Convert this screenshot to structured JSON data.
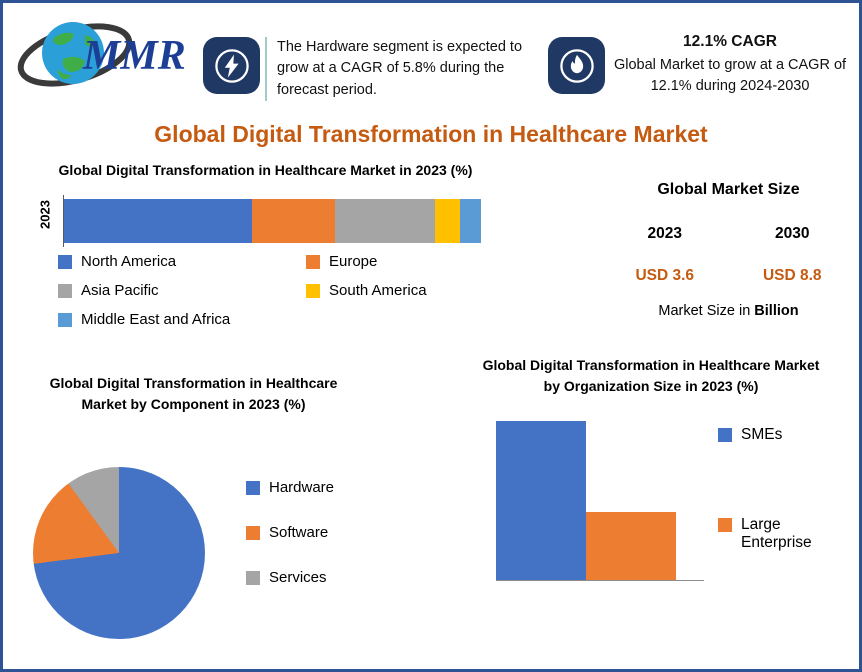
{
  "page": {
    "title": "Global Digital Transformation in Healthcare Market"
  },
  "logo": {
    "text": "MMR"
  },
  "callouts": {
    "hardware": {
      "icon": "lightning-icon",
      "text": "The Hardware segment is expected to grow at a CAGR of 5.8% during the forecast period."
    },
    "cagr": {
      "icon": "flame-icon",
      "headline": "12.1% CAGR",
      "text": "Global Market to grow at a CAGR of 12.1% during 2024-2030"
    }
  },
  "market_size": {
    "title": "Global Market Size",
    "year_left": "2023",
    "year_right": "2030",
    "value_left": "USD 3.6",
    "value_right": "USD 8.8",
    "note_text": "Market Size in ",
    "note_bold": "Billion"
  },
  "colors": {
    "accent_orange": "#c55a11",
    "navy": "#1f3864",
    "border_blue": "#2e5395",
    "series_blue": "#4472c4",
    "series_orange": "#ed7d31",
    "series_gray": "#a5a5a5",
    "series_yellow": "#ffc000",
    "series_lightblue": "#5b9bd5"
  },
  "chart_data": [
    {
      "type": "bar",
      "subtype": "stacked-horizontal",
      "title": "Global Digital Transformation in Healthcare Market in 2023 (%)",
      "categories": [
        "2023"
      ],
      "series": [
        {
          "name": "North America",
          "value": 45,
          "color": "#4472c4"
        },
        {
          "name": "Europe",
          "value": 20,
          "color": "#ed7d31"
        },
        {
          "name": "Asia Pacific",
          "value": 24,
          "color": "#a5a5a5"
        },
        {
          "name": "South America",
          "value": 6,
          "color": "#ffc000"
        },
        {
          "name": "Middle East and Africa",
          "value": 5,
          "color": "#5b9bd5"
        }
      ],
      "unit": "%",
      "legend_position": "bottom"
    },
    {
      "type": "pie",
      "title": "Global Digital Transformation in Healthcare Market by Component in 2023 (%)",
      "slices": [
        {
          "name": "Hardware",
          "value": 73,
          "color": "#4472c4"
        },
        {
          "name": "Software",
          "value": 17,
          "color": "#ed7d31"
        },
        {
          "name": "Services",
          "value": 10,
          "color": "#a5a5a5"
        }
      ],
      "unit": "%",
      "legend_position": "right"
    },
    {
      "type": "bar",
      "subtype": "vertical",
      "title": "Global Digital Transformation in Healthcare Market by Organization Size in 2023 (%)",
      "categories": [
        "SMEs",
        "Large Enterprise"
      ],
      "values": [
        70,
        30
      ],
      "colors": [
        "#4472c4",
        "#ed7d31"
      ],
      "unit": "%",
      "legend_position": "right"
    }
  ]
}
